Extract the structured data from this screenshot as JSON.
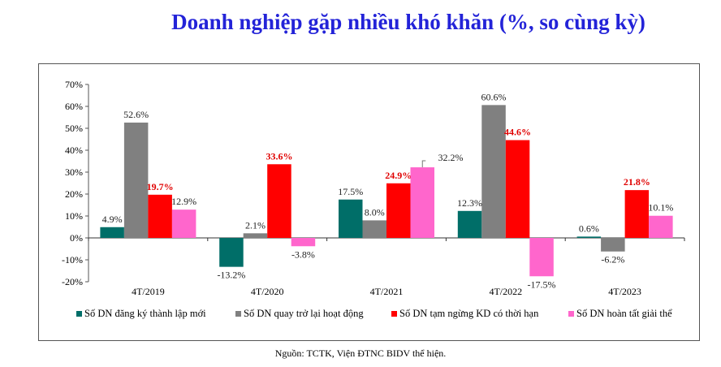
{
  "chart_data": {
    "type": "bar",
    "title": "Doanh nghiệp gặp nhiều khó khăn (%, so cùng kỳ)",
    "categories": [
      "4T/2019",
      "4T/2020",
      "4T/2021",
      "4T/2022",
      "4T/2023"
    ],
    "series": [
      {
        "name": "Số DN đăng ký thành lập mới",
        "color": "#006e68",
        "values": [
          4.9,
          -13.2,
          17.5,
          12.3,
          0.6
        ],
        "label_style": "normal"
      },
      {
        "name": "Số DN quay trở lại hoạt động",
        "color": "#808080",
        "values": [
          52.6,
          2.1,
          8.0,
          60.6,
          -6.2
        ],
        "label_style": "normal"
      },
      {
        "name": "Số DN tạm ngừng KD có thời hạn",
        "color": "#ff0000",
        "values": [
          19.7,
          33.6,
          24.9,
          44.6,
          21.8
        ],
        "label_style": "bold-red"
      },
      {
        "name": "Số DN hoàn tất giải thể",
        "color": "#ff66cc",
        "values": [
          12.9,
          -3.8,
          32.2,
          -17.5,
          10.1
        ],
        "label_style": "normal"
      }
    ],
    "ylim": [
      -20,
      70
    ],
    "yticks": [
      "70%",
      "60%",
      "50%",
      "40%",
      "30%",
      "20%",
      "10%",
      "0%",
      "-10%",
      "-20%"
    ],
    "ytick_values": [
      70,
      60,
      50,
      40,
      30,
      20,
      10,
      0,
      -10,
      -20
    ],
    "xlabel": "",
    "ylabel": "",
    "legend_position": "bottom",
    "grid": false
  },
  "source": "Nguồn: TCTK, Viện ĐTNC BIDV thể hiện."
}
